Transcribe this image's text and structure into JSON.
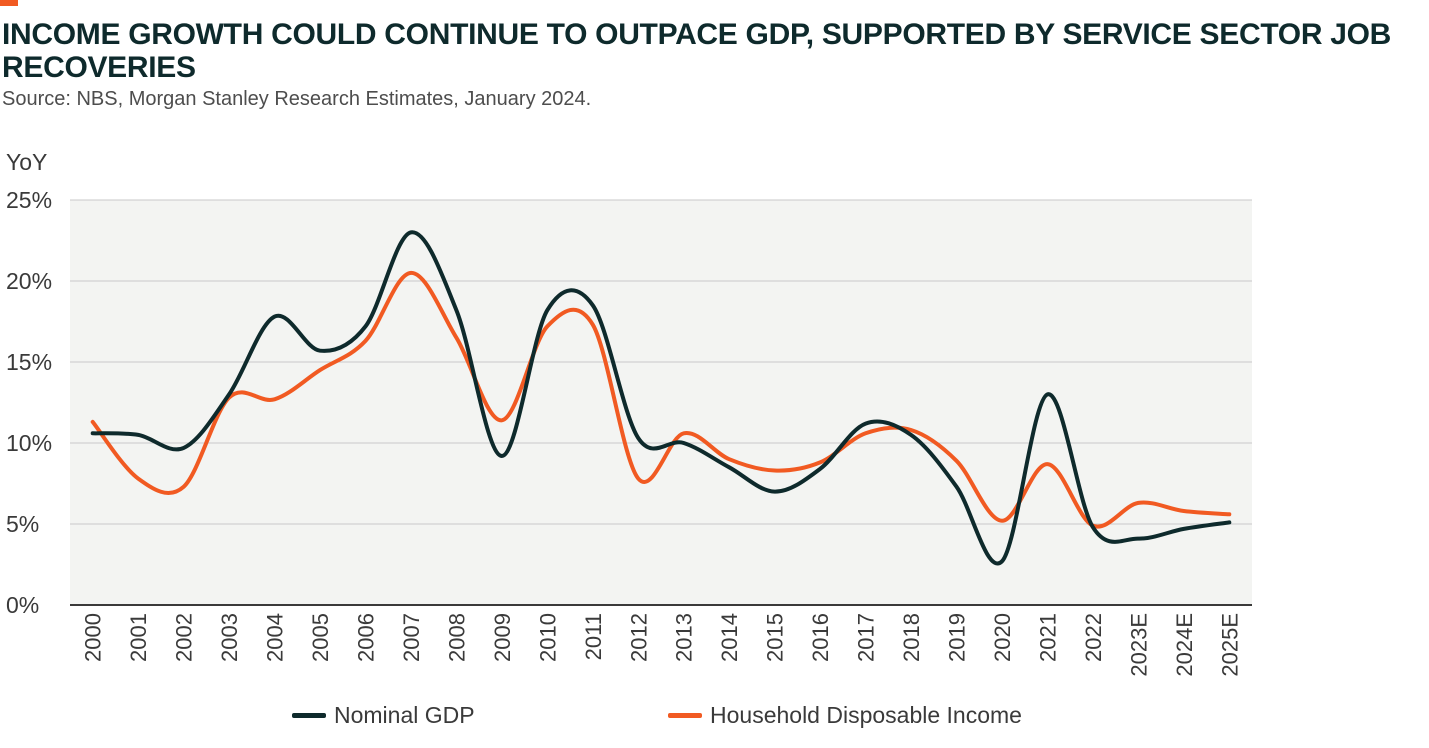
{
  "header": {
    "title": "INCOME GROWTH COULD CONTINUE TO OUTPACE GDP, SUPPORTED BY SERVICE SECTOR JOB RECOVERIES",
    "subtitle": "Source: NBS, Morgan Stanley Research Estimates, January 2024."
  },
  "colors": {
    "accent": "#f15a22",
    "nominal_gdp": "#0e2a2c",
    "household_income": "#f15a22",
    "plot_background": "#f3f4f2",
    "gridline": "#c9c9c9"
  },
  "chart_data": {
    "type": "line",
    "title": "INCOME GROWTH COULD CONTINUE TO OUTPACE GDP, SUPPORTED BY SERVICE SECTOR JOB RECOVERIES",
    "xlabel": "",
    "ylabel": "YoY",
    "ylim": [
      0,
      25
    ],
    "y_ticks": [
      "0%",
      "5%",
      "10%",
      "15%",
      "20%",
      "25%"
    ],
    "y_tick_values": [
      0,
      5,
      10,
      15,
      20,
      25
    ],
    "grid": true,
    "legend_position": "bottom-center",
    "categories": [
      "2000",
      "2001",
      "2002",
      "2003",
      "2004",
      "2005",
      "2006",
      "2007",
      "2008",
      "2009",
      "2010",
      "2011",
      "2012",
      "2013",
      "2014",
      "2015",
      "2016",
      "2017",
      "2018",
      "2019",
      "2020",
      "2021",
      "2022",
      "2023E",
      "2024E",
      "2025E"
    ],
    "series": [
      {
        "name": "Nominal GDP",
        "color": "#0e2a2c",
        "values": [
          10.6,
          10.5,
          9.7,
          13.0,
          17.8,
          15.7,
          17.2,
          23.0,
          18.2,
          9.2,
          18.2,
          18.5,
          10.3,
          10.0,
          8.5,
          7.0,
          8.4,
          11.2,
          10.5,
          7.3,
          2.7,
          13.0,
          4.8,
          4.1,
          4.7,
          5.1
        ]
      },
      {
        "name": "Household Disposable Income",
        "color": "#f15a22",
        "values": [
          11.3,
          7.8,
          7.3,
          12.8,
          12.7,
          14.5,
          16.3,
          20.5,
          16.5,
          11.4,
          17.2,
          17.3,
          7.8,
          10.6,
          9.0,
          8.3,
          8.8,
          10.6,
          10.8,
          8.9,
          5.2,
          8.7,
          4.9,
          6.3,
          5.8,
          5.6
        ]
      }
    ]
  }
}
